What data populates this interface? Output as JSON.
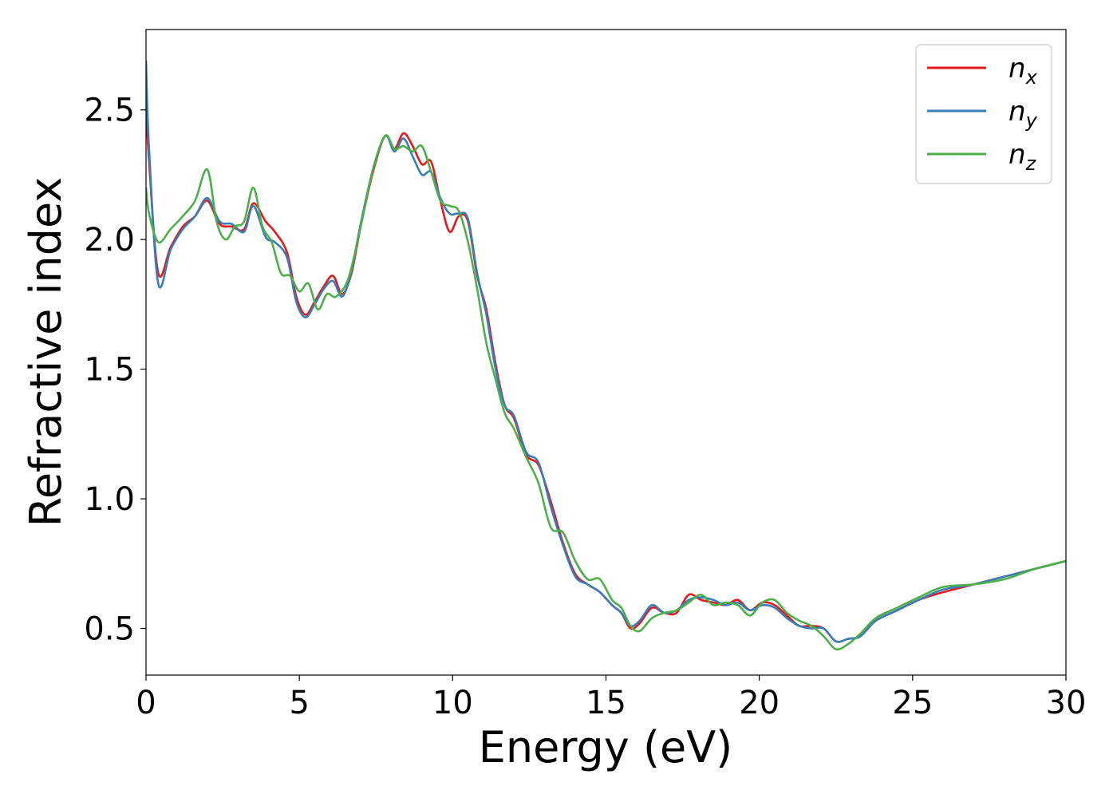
{
  "chart_data": {
    "type": "line",
    "title": "",
    "xlabel": "Energy (eV)",
    "ylabel": "Refractive index",
    "xlim": [
      0,
      30
    ],
    "ylim": [
      0.32,
      2.81
    ],
    "xticks": [
      0,
      5,
      10,
      15,
      20,
      25,
      30
    ],
    "xtick_labels": [
      "0",
      "5",
      "10",
      "15",
      "20",
      "25",
      "30"
    ],
    "yticks": [
      0.5,
      1.0,
      1.5,
      2.0,
      2.5
    ],
    "ytick_labels": [
      "0.5",
      "1.0",
      "1.5",
      "2.0",
      "2.5"
    ],
    "grid": false,
    "legend_position": "top-right",
    "series": [
      {
        "name": "n_x",
        "label_main": "n",
        "label_sub": "x",
        "color": "#e41a1c",
        "x": [
          0,
          0.1,
          0.4,
          0.8,
          1.2,
          1.6,
          2.0,
          2.4,
          2.8,
          3.2,
          3.5,
          3.9,
          4.2,
          4.6,
          4.9,
          5.2,
          5.5,
          5.8,
          6.1,
          6.4,
          6.7,
          7.0,
          7.4,
          7.8,
          8.1,
          8.4,
          8.7,
          9.0,
          9.3,
          9.6,
          9.9,
          10.2,
          10.5,
          10.8,
          11.1,
          11.4,
          11.7,
          12.0,
          12.4,
          12.8,
          13.2,
          13.6,
          14.0,
          14.4,
          14.8,
          15.2,
          15.5,
          15.8,
          16.1,
          16.5,
          16.9,
          17.3,
          17.7,
          18.1,
          18.5,
          18.9,
          19.3,
          19.7,
          20.1,
          20.5,
          20.9,
          21.3,
          21.7,
          22.1,
          22.5,
          22.9,
          23.3,
          23.8,
          24.5,
          25.2,
          26.0,
          27.0,
          28.0,
          29.0,
          30.0
        ],
        "y": [
          2.52,
          2.3,
          1.87,
          1.97,
          2.05,
          2.09,
          2.15,
          2.06,
          2.05,
          2.04,
          2.14,
          2.07,
          2.03,
          1.95,
          1.78,
          1.71,
          1.76,
          1.82,
          1.86,
          1.79,
          1.87,
          2.05,
          2.26,
          2.4,
          2.35,
          2.41,
          2.36,
          2.29,
          2.3,
          2.15,
          2.03,
          2.09,
          2.07,
          1.86,
          1.73,
          1.52,
          1.36,
          1.31,
          1.17,
          1.13,
          0.99,
          0.83,
          0.71,
          0.67,
          0.64,
          0.59,
          0.56,
          0.5,
          0.52,
          0.58,
          0.56,
          0.56,
          0.63,
          0.61,
          0.6,
          0.59,
          0.61,
          0.57,
          0.6,
          0.59,
          0.55,
          0.51,
          0.51,
          0.5,
          0.45,
          0.46,
          0.47,
          0.53,
          0.57,
          0.61,
          0.64,
          0.67,
          0.7,
          0.73,
          0.76
        ]
      },
      {
        "name": "n_y",
        "label_main": "n",
        "label_sub": "y",
        "color": "#377eb8",
        "x": [
          0,
          0.1,
          0.4,
          0.8,
          1.2,
          1.6,
          2.0,
          2.4,
          2.8,
          3.2,
          3.5,
          3.9,
          4.2,
          4.6,
          4.9,
          5.2,
          5.5,
          5.8,
          6.1,
          6.4,
          6.7,
          7.0,
          7.4,
          7.8,
          8.1,
          8.4,
          8.7,
          9.0,
          9.3,
          9.6,
          9.9,
          10.2,
          10.5,
          10.8,
          11.1,
          11.4,
          11.7,
          12.0,
          12.4,
          12.8,
          13.2,
          13.6,
          14.0,
          14.4,
          14.8,
          15.2,
          15.5,
          15.8,
          16.1,
          16.5,
          16.9,
          17.3,
          17.7,
          18.1,
          18.5,
          18.9,
          19.3,
          19.7,
          20.1,
          20.5,
          20.9,
          21.3,
          21.7,
          22.1,
          22.5,
          22.9,
          23.3,
          23.8,
          24.5,
          25.2,
          26.0,
          27.0,
          28.0,
          29.0,
          30.0
        ],
        "y": [
          2.69,
          2.35,
          1.83,
          1.96,
          2.04,
          2.09,
          2.16,
          2.07,
          2.06,
          2.03,
          2.13,
          2.01,
          1.99,
          1.93,
          1.76,
          1.7,
          1.75,
          1.81,
          1.84,
          1.78,
          1.88,
          2.06,
          2.27,
          2.4,
          2.34,
          2.39,
          2.32,
          2.25,
          2.26,
          2.16,
          2.1,
          2.1,
          2.08,
          1.87,
          1.71,
          1.5,
          1.36,
          1.32,
          1.18,
          1.14,
          0.97,
          0.82,
          0.7,
          0.67,
          0.64,
          0.59,
          0.56,
          0.51,
          0.53,
          0.59,
          0.56,
          0.57,
          0.61,
          0.62,
          0.61,
          0.59,
          0.6,
          0.57,
          0.59,
          0.58,
          0.54,
          0.51,
          0.5,
          0.5,
          0.45,
          0.46,
          0.47,
          0.53,
          0.57,
          0.61,
          0.65,
          0.67,
          0.7,
          0.73,
          0.76
        ]
      },
      {
        "name": "n_z",
        "label_main": "n",
        "label_sub": "z",
        "color": "#4daf4a",
        "x": [
          0,
          0.1,
          0.4,
          0.8,
          1.2,
          1.6,
          2.0,
          2.3,
          2.6,
          2.9,
          3.2,
          3.5,
          3.8,
          4.1,
          4.4,
          4.7,
          5.0,
          5.3,
          5.6,
          5.9,
          6.2,
          6.6,
          7.0,
          7.4,
          7.8,
          8.1,
          8.4,
          8.7,
          9.0,
          9.3,
          9.6,
          9.9,
          10.2,
          10.5,
          10.8,
          11.1,
          11.4,
          11.7,
          12.0,
          12.4,
          12.8,
          13.2,
          13.6,
          14.0,
          14.4,
          14.8,
          15.2,
          15.5,
          15.8,
          16.1,
          16.5,
          16.9,
          17.3,
          17.7,
          18.1,
          18.5,
          18.9,
          19.3,
          19.7,
          20.1,
          20.5,
          20.9,
          21.3,
          21.7,
          22.1,
          22.5,
          22.9,
          23.3,
          23.8,
          24.5,
          25.2,
          26.0,
          27.0,
          28.0,
          29.0,
          30.0
        ],
        "y": [
          2.2,
          2.1,
          1.99,
          2.04,
          2.09,
          2.15,
          2.27,
          2.07,
          2.0,
          2.05,
          2.07,
          2.2,
          2.05,
          1.99,
          1.87,
          1.86,
          1.8,
          1.83,
          1.73,
          1.79,
          1.78,
          1.85,
          2.05,
          2.27,
          2.4,
          2.35,
          2.36,
          2.34,
          2.36,
          2.26,
          2.15,
          2.13,
          2.11,
          1.99,
          1.81,
          1.6,
          1.46,
          1.33,
          1.27,
          1.16,
          1.06,
          0.89,
          0.87,
          0.76,
          0.69,
          0.69,
          0.61,
          0.58,
          0.51,
          0.49,
          0.54,
          0.56,
          0.57,
          0.6,
          0.63,
          0.59,
          0.6,
          0.59,
          0.55,
          0.6,
          0.61,
          0.56,
          0.53,
          0.51,
          0.47,
          0.42,
          0.44,
          0.48,
          0.54,
          0.58,
          0.62,
          0.66,
          0.67,
          0.69,
          0.73,
          0.76
        ]
      }
    ]
  }
}
